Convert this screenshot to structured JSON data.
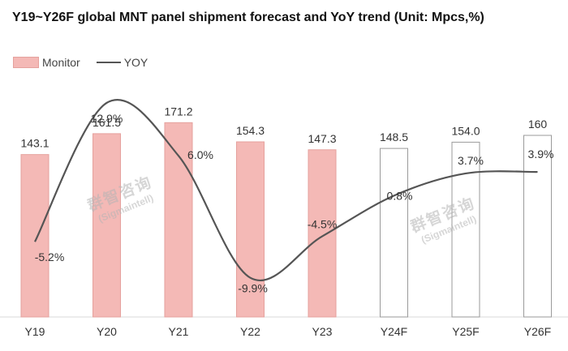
{
  "chart_data": {
    "type": "bar",
    "title": "Y19~Y26F global MNT panel shipment forecast and YoY trend (Unit: Mpcs,%)",
    "categories": [
      "Y19",
      "Y20",
      "Y21",
      "Y22",
      "Y23",
      "Y24F",
      "Y25F",
      "Y26F"
    ],
    "series": [
      {
        "name": "Monitor",
        "type": "bar",
        "values": [
          143.1,
          161.5,
          171.2,
          154.3,
          147.3,
          148.5,
          154.0,
          160
        ],
        "labels": [
          "143.1",
          "161.5",
          "171.2",
          "154.3",
          "147.3",
          "148.5",
          "154.0",
          "160"
        ],
        "forecast": [
          false,
          false,
          false,
          false,
          false,
          true,
          true,
          true
        ]
      },
      {
        "name": "YOY",
        "type": "line",
        "values": [
          -5.2,
          12.9,
          6.0,
          -9.9,
          -4.5,
          0.8,
          3.7,
          3.9
        ],
        "labels": [
          "-5.2%",
          "12.9%",
          "6.0%",
          "-9.9%",
          "-4.5%",
          "0.8%",
          "3.7%",
          "3.9%"
        ]
      }
    ],
    "ylim_bar": [
      0,
      175
    ],
    "ylim_line": [
      -15,
      15
    ],
    "legend": "top-left",
    "colors": {
      "bar_fill": "#f4b9b6",
      "bar_stroke": "#e5a19d",
      "forecast_fill": "#ffffff",
      "forecast_stroke": "#9a9a9a",
      "line": "#555555"
    }
  },
  "watermark": {
    "line1": "群智咨询",
    "line2": "(Sigmaintell)"
  }
}
